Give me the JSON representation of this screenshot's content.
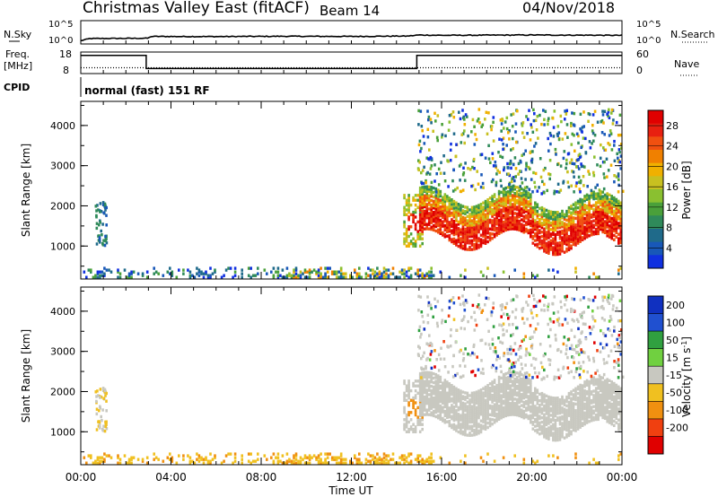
{
  "header": {
    "station": "Christmas Valley East (fitACF)",
    "beam": "Beam 14",
    "date": "04/Nov/2018"
  },
  "panels": {
    "nsky": {
      "left_label": "N.Sky",
      "ticks_left": [
        "10^5",
        "10^0"
      ],
      "ticks_right": [
        "10^5",
        "10^0"
      ],
      "right_label": "N.Search"
    },
    "freq": {
      "left_label": "Freq.",
      "left_unit": "[MHz]",
      "ticks_left": [
        "18",
        "8"
      ],
      "ticks_right": [
        "60",
        "0"
      ],
      "right_label": "Nave"
    },
    "cpid": {
      "label": "CPID",
      "mode": "normal (fast) 151 RF"
    }
  },
  "chart_data": [
    {
      "type": "heatmap",
      "title": "",
      "xlabel": "Time UT",
      "ylabel": "Slant Range [km]",
      "x_ticks": [
        "00:00",
        "04:00",
        "08:00",
        "12:00",
        "16:00",
        "20:00",
        "00:00"
      ],
      "y_ticks": [
        1000,
        2000,
        3000,
        4000
      ],
      "xlim_hours": [
        0,
        24
      ],
      "ylim_km": [
        180,
        4600
      ],
      "colorbar": {
        "label": "Power [dB]",
        "ticks": [
          4,
          8,
          12,
          16,
          20,
          24,
          28
        ],
        "range": [
          0,
          31
        ],
        "colors": [
          "#1030e0",
          "#1858b8",
          "#1f6a8a",
          "#2f8a5a",
          "#4aa03a",
          "#8ac030",
          "#c8c020",
          "#f0b000",
          "#f08000",
          "#f05010",
          "#e82010",
          "#e00000"
        ]
      },
      "observations": {
        "ground_scatter_band_km": [
          200,
          450
        ],
        "ground_scatter_hours": [
          0,
          15.5
        ],
        "ionospheric_band_km": [
          1100,
          2300
        ],
        "ionospheric_hours": [
          14.5,
          24
        ],
        "scattered_echoes_km": [
          2500,
          4400
        ],
        "scattered_echoes_hours": [
          14.8,
          24
        ],
        "max_power_db": 30
      }
    },
    {
      "type": "heatmap",
      "title": "",
      "xlabel": "Time UT",
      "ylabel": "Slant Range [km]",
      "x_ticks": [
        "00:00",
        "04:00",
        "08:00",
        "12:00",
        "16:00",
        "20:00",
        "00:00"
      ],
      "y_ticks": [
        1000,
        2000,
        3000,
        4000
      ],
      "xlim_hours": [
        0,
        24
      ],
      "ylim_km": [
        180,
        4600
      ],
      "colorbar": {
        "label": "Velocity [m s-1]",
        "ticks": [
          "200",
          "100",
          "50",
          "15",
          "-15",
          "-50",
          "-100",
          "-200"
        ],
        "colors": [
          "#1030c0",
          "#2050d0",
          "#30a040",
          "#70d040",
          "#c8c8c0",
          "#f0c020",
          "#f09010",
          "#f04010",
          "#e00000"
        ]
      },
      "observations": {
        "ground_scatter_color": "#c8c8c0",
        "near_range_velocity_sign": "negative (-15 to -50)",
        "ionospheric_band_km": [
          1300,
          2500
        ],
        "ionospheric_hours": [
          15,
          24
        ]
      }
    }
  ],
  "timeline": {
    "nsky_log": [
      [
        0,
        0.2
      ],
      [
        0.4,
        0.5
      ],
      [
        3,
        0.55
      ],
      [
        3.1,
        0.8
      ],
      [
        6,
        0.78
      ],
      [
        9,
        0.82
      ],
      [
        12,
        0.8
      ],
      [
        14.5,
        0.85
      ],
      [
        15,
        1.0
      ],
      [
        16,
        0.95
      ],
      [
        20,
        1.0
      ],
      [
        24,
        0.95
      ]
    ],
    "freq_mhz": [
      [
        0,
        17.2
      ],
      [
        2.9,
        17.2
      ],
      [
        2.9,
        10.2
      ],
      [
        14.9,
        10.2
      ],
      [
        14.9,
        17.2
      ],
      [
        24,
        17.2
      ]
    ],
    "nave": [
      [
        0,
        15
      ],
      [
        24,
        15
      ]
    ]
  }
}
